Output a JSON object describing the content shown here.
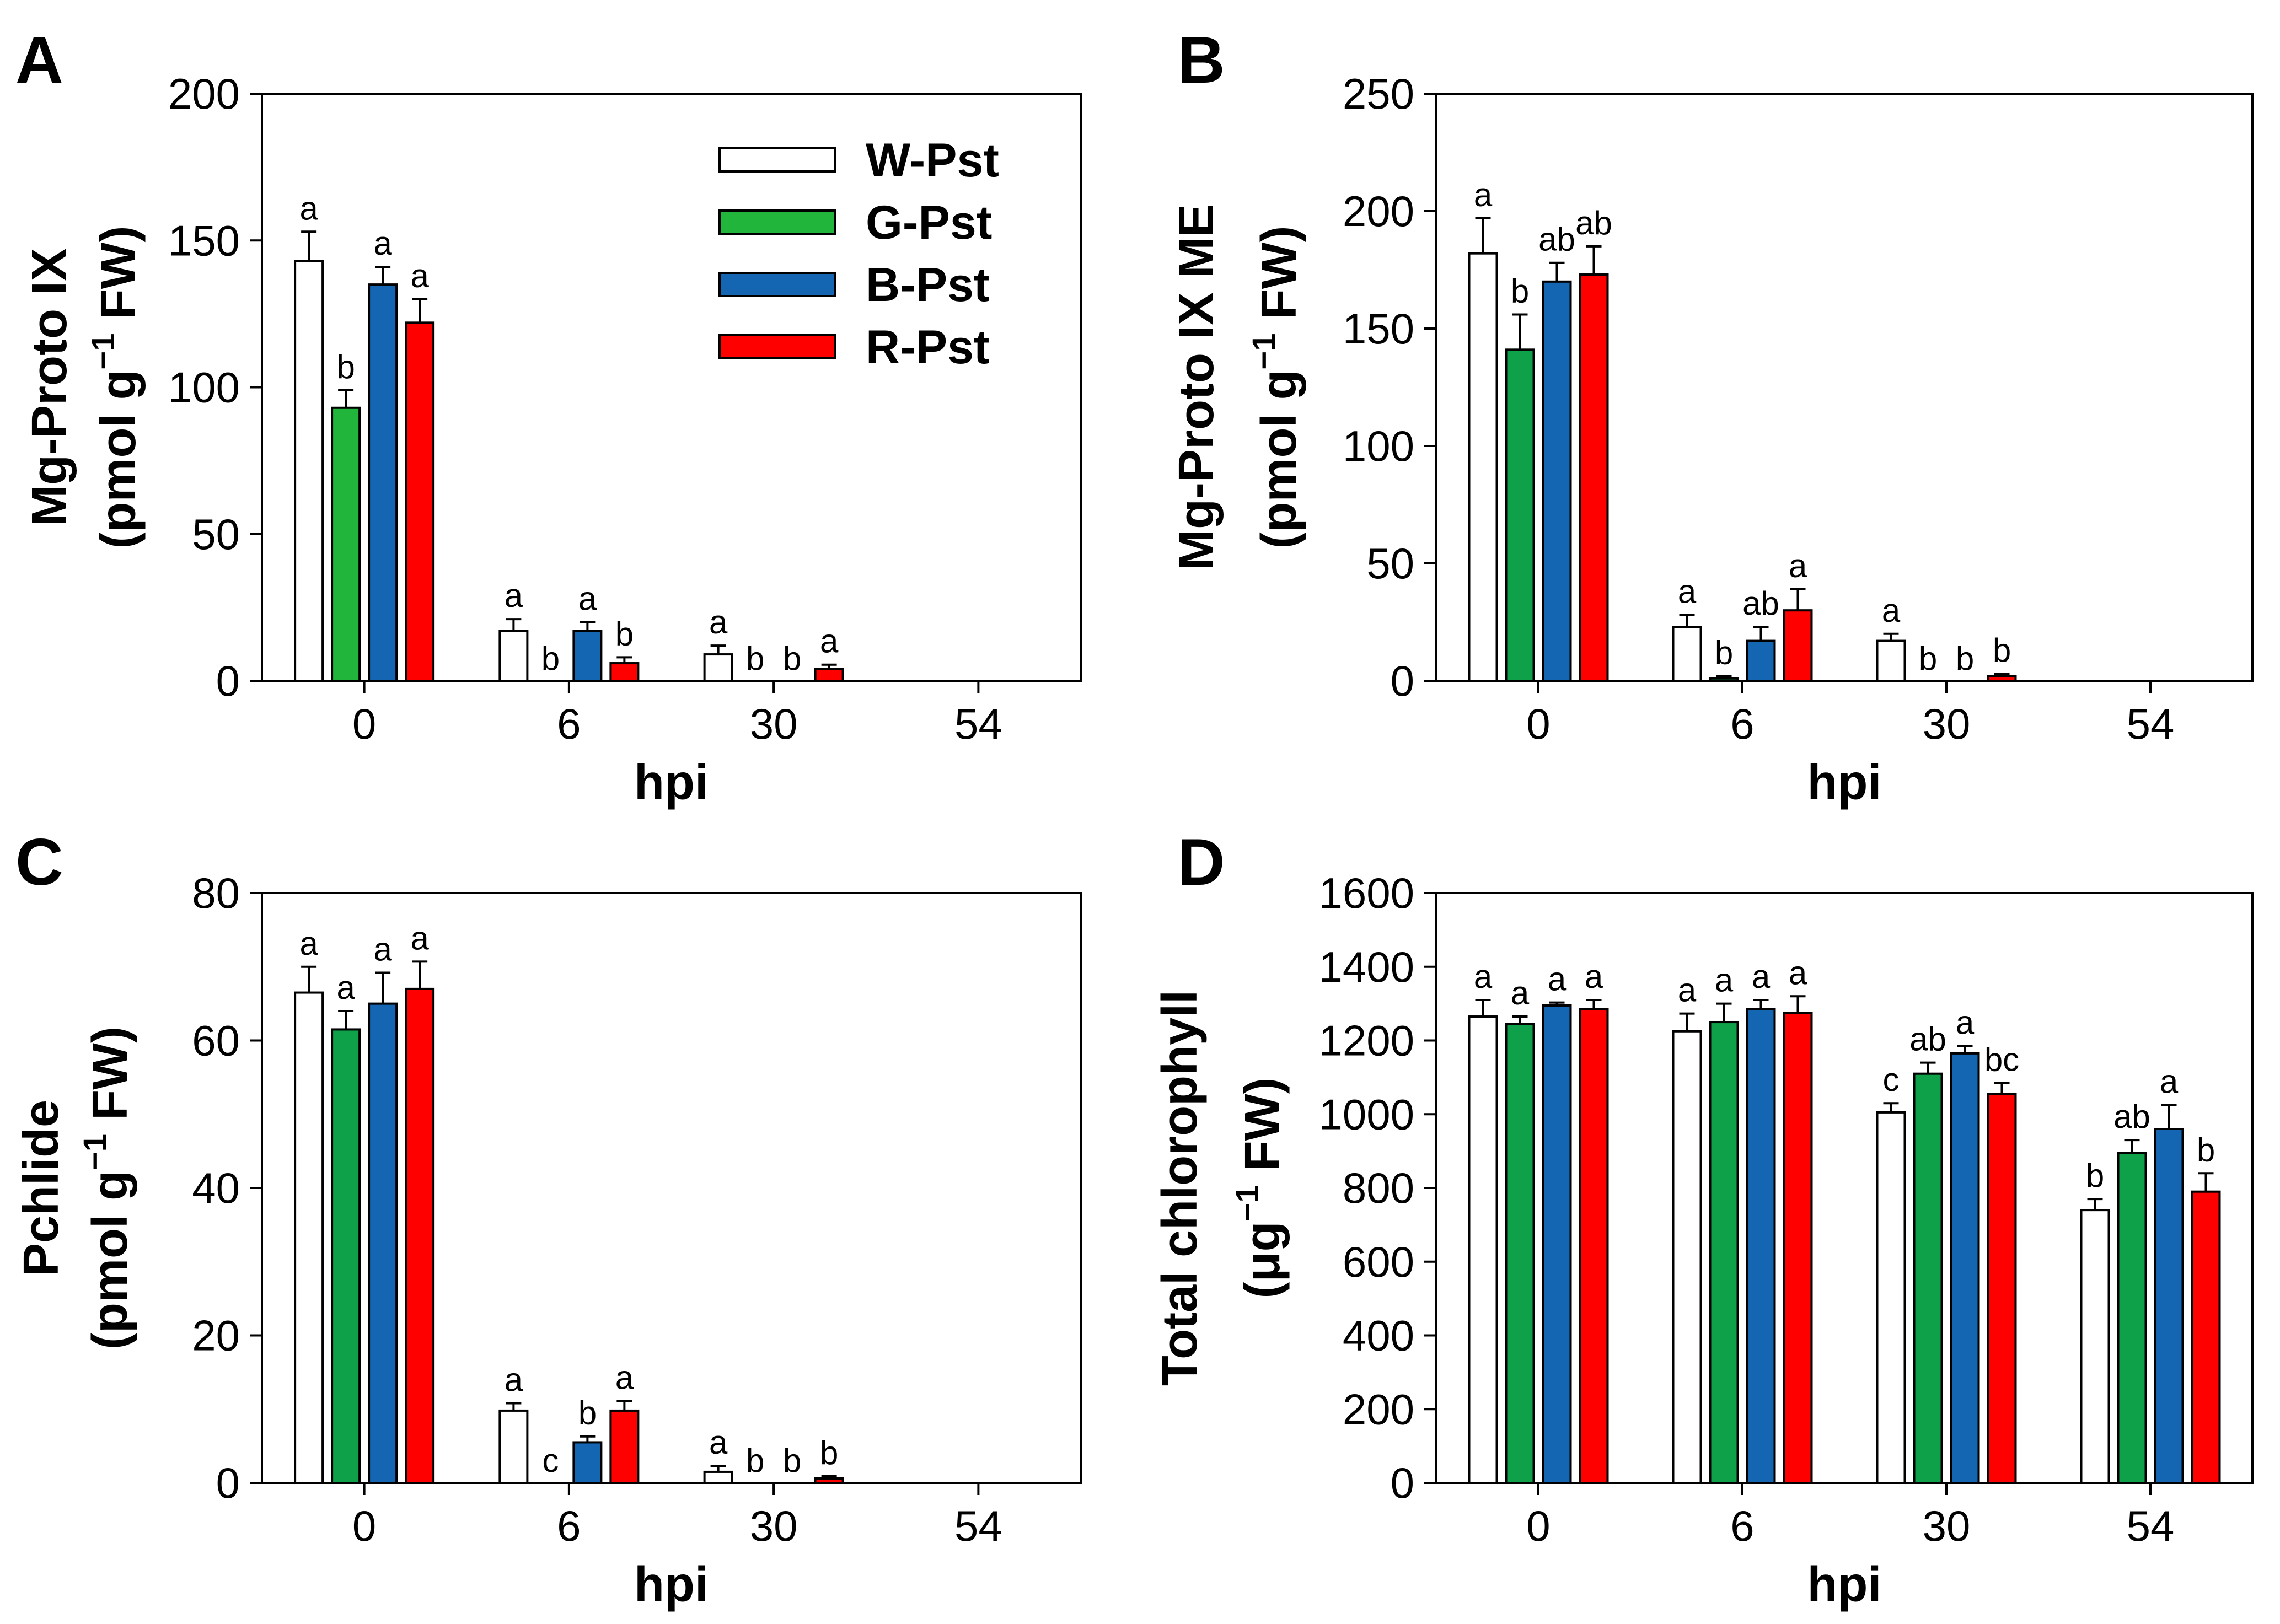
{
  "chart_data": [
    {
      "type": "bar",
      "panel": "A",
      "categories": [
        "0",
        "6",
        "30",
        "54"
      ],
      "xlabel": "hpi",
      "ylabel": [
        "Mg-Proto IX",
        "(pmol g",
        "−1",
        " FW)"
      ],
      "ylim": [
        0,
        200
      ],
      "yticks": [
        "0",
        "50",
        "100",
        "150",
        "200"
      ],
      "series": [
        {
          "name": "W-Pst",
          "color": "#ffffff",
          "values": [
            143,
            17,
            9,
            null
          ],
          "errors": [
            10,
            4,
            3,
            null
          ],
          "labels": [
            "a",
            "a",
            "a",
            ""
          ]
        },
        {
          "name": "G-Pst",
          "color": "#22b53c",
          "values": [
            93,
            0,
            0,
            null
          ],
          "errors": [
            6,
            0,
            0,
            null
          ],
          "labels": [
            "b",
            "b",
            "b",
            ""
          ]
        },
        {
          "name": "B-Pst",
          "color": "#1466b3",
          "values": [
            135,
            17,
            0,
            null
          ],
          "errors": [
            6,
            3,
            0,
            null
          ],
          "labels": [
            "a",
            "a",
            "b",
            ""
          ]
        },
        {
          "name": "R-Pst",
          "color": "#ff0000",
          "values": [
            122,
            6,
            4,
            null
          ],
          "errors": [
            8,
            2,
            1.5,
            null
          ],
          "labels": [
            "a",
            "b",
            "a",
            ""
          ]
        }
      ],
      "legend": {
        "position": "top-right",
        "entries": [
          "W-Pst",
          "G-Pst",
          "B-Pst",
          "R-Pst"
        ]
      }
    },
    {
      "type": "bar",
      "panel": "B",
      "categories": [
        "0",
        "6",
        "30",
        "54"
      ],
      "xlabel": "hpi",
      "ylabel": [
        "Mg-Proto IX ME",
        "(pmol g",
        "−1",
        " FW)"
      ],
      "ylim": [
        0,
        250
      ],
      "yticks": [
        "0",
        "50",
        "100",
        "150",
        "200",
        "250"
      ],
      "series": [
        {
          "name": "W-Pst",
          "color": "#ffffff",
          "values": [
            182,
            23,
            17,
            null
          ],
          "errors": [
            15,
            5,
            3,
            null
          ],
          "labels": [
            "a",
            "a",
            "a",
            ""
          ]
        },
        {
          "name": "G-Pst",
          "color": "#0fa14a",
          "values": [
            141,
            1,
            0,
            null
          ],
          "errors": [
            15,
            1,
            0,
            null
          ],
          "labels": [
            "b",
            "b",
            "b",
            ""
          ]
        },
        {
          "name": "B-Pst",
          "color": "#1466b3",
          "values": [
            170,
            17,
            0,
            null
          ],
          "errors": [
            8,
            6,
            0,
            null
          ],
          "labels": [
            "ab",
            "ab",
            "b",
            ""
          ]
        },
        {
          "name": "R-Pst",
          "color": "#ff0000",
          "values": [
            173,
            30,
            2,
            null
          ],
          "errors": [
            12,
            9,
            1,
            null
          ],
          "labels": [
            "ab",
            "a",
            "b",
            ""
          ]
        }
      ]
    },
    {
      "type": "bar",
      "panel": "C",
      "categories": [
        "0",
        "6",
        "30",
        "54"
      ],
      "xlabel": "hpi",
      "ylabel": [
        "Pchlide",
        "(pmol g",
        "−1",
        " FW)"
      ],
      "ylim": [
        0,
        80
      ],
      "yticks": [
        "0",
        "20",
        "40",
        "60",
        "80"
      ],
      "series": [
        {
          "name": "W-Pst",
          "color": "#ffffff",
          "values": [
            66.5,
            9.8,
            1.5,
            null
          ],
          "errors": [
            3.5,
            1,
            0.8,
            null
          ],
          "labels": [
            "a",
            "a",
            "a",
            ""
          ]
        },
        {
          "name": "G-Pst",
          "color": "#0fa14a",
          "values": [
            61.5,
            0,
            0,
            null
          ],
          "errors": [
            2.5,
            0,
            0,
            null
          ],
          "labels": [
            "a",
            "c",
            "b",
            ""
          ]
        },
        {
          "name": "B-Pst",
          "color": "#1466b3",
          "values": [
            65,
            5.5,
            0,
            null
          ],
          "errors": [
            4.2,
            0.8,
            0,
            null
          ],
          "labels": [
            "a",
            "b",
            "b",
            ""
          ]
        },
        {
          "name": "R-Pst",
          "color": "#ff0000",
          "values": [
            67,
            9.8,
            0.6,
            null
          ],
          "errors": [
            3.7,
            1.3,
            0.3,
            null
          ],
          "labels": [
            "a",
            "a",
            "b",
            ""
          ]
        }
      ]
    },
    {
      "type": "bar",
      "panel": "D",
      "categories": [
        "0",
        "6",
        "30",
        "54"
      ],
      "xlabel": "hpi",
      "ylabel": [
        "Total chlorophyll",
        "(μg",
        "−1",
        " FW)"
      ],
      "ylim": [
        0,
        1600
      ],
      "yticks": [
        "0",
        "200",
        "400",
        "600",
        "800",
        "1000",
        "1200",
        "1400",
        "1600"
      ],
      "series": [
        {
          "name": "W-Pst",
          "color": "#ffffff",
          "values": [
            1265,
            1225,
            1005,
            740
          ],
          "errors": [
            45,
            48,
            25,
            30
          ],
          "labels": [
            "a",
            "a",
            "c",
            "b"
          ]
        },
        {
          "name": "G-Pst",
          "color": "#0fa14a",
          "values": [
            1245,
            1250,
            1110,
            895
          ],
          "errors": [
            20,
            50,
            30,
            35
          ],
          "labels": [
            "a",
            "a",
            "ab",
            "ab"
          ]
        },
        {
          "name": "B-Pst",
          "color": "#1466b3",
          "values": [
            1295,
            1285,
            1165,
            960
          ],
          "errors": [
            8,
            25,
            20,
            65
          ],
          "labels": [
            "a",
            "a",
            "a",
            "a"
          ]
        },
        {
          "name": "R-Pst",
          "color": "#ff0000",
          "values": [
            1285,
            1275,
            1055,
            790
          ],
          "errors": [
            25,
            45,
            30,
            50
          ],
          "labels": [
            "a",
            "a",
            "bc",
            "b"
          ]
        }
      ]
    }
  ]
}
